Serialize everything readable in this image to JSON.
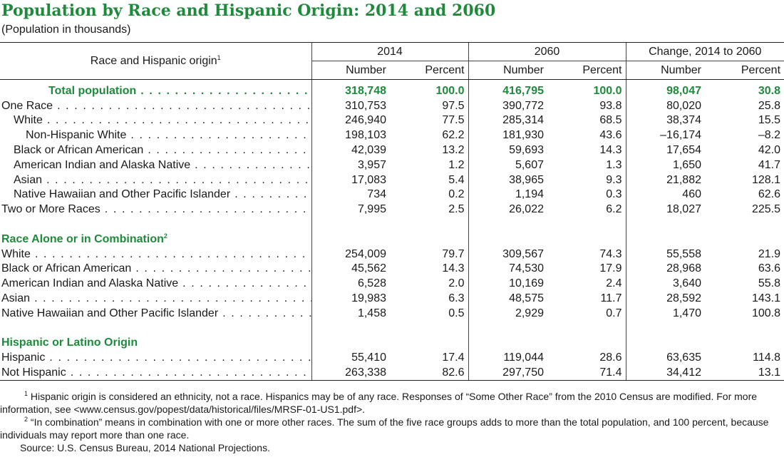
{
  "title": "Population by Race and Hispanic Origin: 2014 and 2060",
  "subtitle": "(Population in thousands)",
  "headers": {
    "stub": "Race and Hispanic origin",
    "stub_note": "1",
    "groups": [
      "2014",
      "2060",
      "Change, 2014 to 2060"
    ],
    "cols": [
      "Number",
      "Percent",
      "Number",
      "Percent",
      "Number",
      "Percent"
    ]
  },
  "total": {
    "label": "Total population",
    "values": [
      "318,748",
      "100.0",
      "416,795",
      "100.0",
      "98,047",
      "30.8"
    ]
  },
  "section1_rows": [
    {
      "label": "One Race",
      "values": [
        "310,753",
        "97.5",
        "390,772",
        "93.8",
        "80,020",
        "25.8"
      ]
    },
    {
      "label": "White",
      "values": [
        "246,940",
        "77.5",
        "285,314",
        "68.5",
        "38,374",
        "15.5"
      ]
    },
    {
      "label": "Non-Hispanic White",
      "values": [
        "198,103",
        "62.2",
        "181,930",
        "43.6",
        "–16,174",
        "–8.2"
      ]
    },
    {
      "label": "Black or African American",
      "values": [
        "42,039",
        "13.2",
        "59,693",
        "14.3",
        "17,654",
        "42.0"
      ]
    },
    {
      "label": "American Indian and Alaska Native",
      "values": [
        "3,957",
        "1.2",
        "5,607",
        "1.3",
        "1,650",
        "41.7"
      ]
    },
    {
      "label": "Asian",
      "values": [
        "17,083",
        "5.4",
        "38,965",
        "9.3",
        "21,882",
        "128.1"
      ]
    },
    {
      "label": "Native Hawaiian and Other Pacific Islander",
      "values": [
        "734",
        "0.2",
        "1,194",
        "0.3",
        "460",
        "62.6"
      ]
    },
    {
      "label": "Two or More Races",
      "values": [
        "7,995",
        "2.5",
        "26,022",
        "6.2",
        "18,027",
        "225.5"
      ]
    }
  ],
  "section2": {
    "title": "Race Alone or in Combination",
    "note": "2",
    "rows": [
      {
        "label": "White",
        "values": [
          "254,009",
          "79.7",
          "309,567",
          "74.3",
          "55,558",
          "21.9"
        ]
      },
      {
        "label": "Black or African American",
        "values": [
          "45,562",
          "14.3",
          "74,530",
          "17.9",
          "28,968",
          "63.6"
        ]
      },
      {
        "label": "American Indian and Alaska Native",
        "values": [
          "6,528",
          "2.0",
          "10,169",
          "2.4",
          "3,640",
          "55.8"
        ]
      },
      {
        "label": "Asian",
        "values": [
          "19,983",
          "6.3",
          "48,575",
          "11.7",
          "28,592",
          "143.1"
        ]
      },
      {
        "label": "Native Hawaiian and Other Pacific Islander",
        "values": [
          "1,458",
          "0.5",
          "2,929",
          "0.7",
          "1,470",
          "100.8"
        ]
      }
    ]
  },
  "section3": {
    "title": "Hispanic or Latino Origin",
    "rows": [
      {
        "label": "Hispanic",
        "values": [
          "55,410",
          "17.4",
          "119,044",
          "28.6",
          "63,635",
          "114.8"
        ]
      },
      {
        "label": "Not Hispanic",
        "values": [
          "263,338",
          "82.6",
          "297,750",
          "71.4",
          "34,412",
          "13.1"
        ]
      }
    ]
  },
  "notes": {
    "n1_mark": "1",
    "n1": "Hispanic origin is considered an ethnicity, not a race. Hispanics may be of any race. Responses of “Some Other Race” from the 2010 Census are modified. For more information, see <www.census.gov/popest/data/historical/files/MRSF-01-US1.pdf>.",
    "n2_mark": "2",
    "n2": "“In combination” means in combination with one or more other races. The sum of the five race groups adds to more than the total population, and 100 percent, because individuals may report more than one race.",
    "source": "Source: U.S. Census Bureau, 2014 National Projections."
  }
}
